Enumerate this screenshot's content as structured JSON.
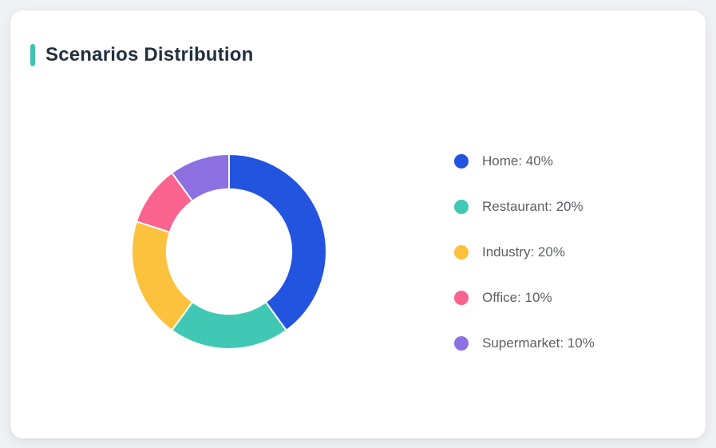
{
  "page": {
    "background": "#f0f1f4"
  },
  "card": {
    "background": "#ffffff"
  },
  "header": {
    "title": "Scenarios Distribution",
    "accent_color": "#3fc3ae"
  },
  "chart_data": {
    "type": "pie",
    "subtype": "doughnut",
    "title": "Scenarios Distribution",
    "categories": [
      "Home",
      "Restaurant",
      "Industry",
      "Office",
      "Supermarket"
    ],
    "values": [
      40,
      20,
      20,
      10,
      10
    ],
    "unit": "%",
    "colors": [
      "#2254e0",
      "#41c8b4",
      "#fcc13d",
      "#f9638d",
      "#8d70e2"
    ],
    "start_angle": "top",
    "direction": "clockwise",
    "inner_radius_ratio": 0.64,
    "slice_border_color": "#ffffff",
    "slice_border_width": 2,
    "legend_position": "right",
    "legend_labels": [
      "Home: 40%",
      "Restaurant: 20%",
      "Industry: 20%",
      "Office: 10%",
      "Supermarket: 10%"
    ]
  }
}
